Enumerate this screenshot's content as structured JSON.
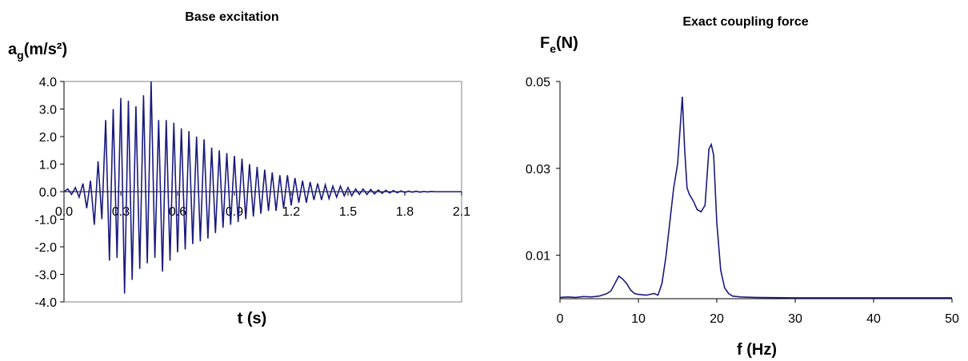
{
  "chart_data": [
    {
      "type": "line",
      "title": "Base excitation",
      "ylabel": "a",
      "ylabel_sub": "g",
      "ylabel_unit": "(m/s²)",
      "xlabel": "t (s)",
      "xlim": [
        0,
        2.1
      ],
      "ylim": [
        -4.0,
        4.0
      ],
      "x_ticks": [
        "0.0",
        "0.3",
        "0.6",
        "0.9",
        "1.2",
        "1.5",
        "1.8",
        "2.1"
      ],
      "x_tick_values": [
        0,
        0.3,
        0.6,
        0.9,
        1.2,
        1.5,
        1.8,
        2.1
      ],
      "y_ticks": [
        "4.0",
        "3.0",
        "2.0",
        "1.0",
        "0.0",
        "-1.0",
        "-2.0",
        "-3.0",
        "-4.0"
      ],
      "y_tick_values": [
        4,
        3,
        2,
        1,
        0,
        -1,
        -2,
        -3,
        -4
      ],
      "grid": false,
      "color": "#1a1a80",
      "series": [
        {
          "x": [
            0.0,
            0.02,
            0.04,
            0.06,
            0.08,
            0.1,
            0.12,
            0.14,
            0.16,
            0.18,
            0.2,
            0.22,
            0.24,
            0.26,
            0.28,
            0.3,
            0.32,
            0.34,
            0.36,
            0.38,
            0.4,
            0.42,
            0.44,
            0.46,
            0.48,
            0.5,
            0.52,
            0.54,
            0.56,
            0.58,
            0.6,
            0.62,
            0.64,
            0.66,
            0.68,
            0.7,
            0.72,
            0.74,
            0.76,
            0.78,
            0.8,
            0.82,
            0.84,
            0.86,
            0.88,
            0.9,
            0.92,
            0.94,
            0.96,
            0.98,
            1.0,
            1.02,
            1.04,
            1.06,
            1.08,
            1.1,
            1.12,
            1.14,
            1.16,
            1.18,
            1.2,
            1.22,
            1.24,
            1.26,
            1.28,
            1.3,
            1.32,
            1.34,
            1.36,
            1.38,
            1.4,
            1.42,
            1.44,
            1.46,
            1.48,
            1.5,
            1.52,
            1.54,
            1.56,
            1.58,
            1.6,
            1.62,
            1.64,
            1.66,
            1.68,
            1.7,
            1.72,
            1.74,
            1.76,
            1.78,
            1.8,
            1.82,
            1.84,
            1.86,
            1.88,
            1.9,
            1.92,
            1.94,
            1.96,
            1.98,
            2.0,
            2.05,
            2.1
          ],
          "y": [
            0.0,
            0.1,
            -0.1,
            0.15,
            -0.2,
            0.3,
            -0.6,
            0.4,
            -1.2,
            1.1,
            -1.0,
            2.6,
            -2.5,
            3.0,
            -2.4,
            3.4,
            -3.7,
            3.3,
            -3.2,
            3.1,
            -2.8,
            3.5,
            -2.6,
            4.0,
            -2.4,
            2.6,
            -2.9,
            2.6,
            -2.5,
            2.5,
            -2.2,
            2.3,
            -2.1,
            2.2,
            -1.9,
            2.0,
            -1.8,
            1.9,
            -1.7,
            1.6,
            -1.5,
            1.5,
            -1.3,
            1.4,
            -1.2,
            1.3,
            -1.1,
            1.2,
            -1.0,
            1.0,
            -0.9,
            0.9,
            -0.8,
            0.8,
            -0.7,
            0.7,
            -0.7,
            0.6,
            -0.6,
            0.6,
            -0.5,
            0.5,
            -0.4,
            0.4,
            -0.4,
            0.35,
            -0.3,
            0.3,
            -0.3,
            0.25,
            -0.25,
            0.2,
            -0.2,
            0.2,
            -0.15,
            0.15,
            -0.15,
            0.1,
            -0.1,
            0.1,
            -0.1,
            0.08,
            -0.08,
            0.06,
            -0.06,
            0.05,
            -0.05,
            0.04,
            -0.04,
            0.03,
            -0.03,
            0.02,
            -0.02,
            0.02,
            -0.02,
            0.01,
            -0.01,
            0.01,
            0.0,
            0.0,
            0.0,
            0.0,
            0.0
          ]
        }
      ]
    },
    {
      "type": "line",
      "title": "Exact coupling force",
      "ylabel": "F",
      "ylabel_sub": "e",
      "ylabel_unit": "(N)",
      "xlabel": "f (Hz)",
      "xlim": [
        0,
        50
      ],
      "ylim": [
        0,
        0.05
      ],
      "x_ticks": [
        "0",
        "10",
        "20",
        "30",
        "40",
        "50"
      ],
      "x_tick_values": [
        0,
        10,
        20,
        30,
        40,
        50
      ],
      "y_ticks": [
        "0.05",
        "0.03",
        "0.01"
      ],
      "y_tick_values": [
        0.05,
        0.03,
        0.01
      ],
      "grid": false,
      "color": "#1a1a80",
      "series": [
        {
          "x": [
            0,
            1,
            2,
            3,
            4,
            5,
            6,
            6.5,
            7,
            7.5,
            8,
            8.5,
            9,
            9.5,
            10,
            11,
            12,
            12.5,
            13,
            13.5,
            14,
            14.5,
            15,
            15.3,
            15.6,
            15.9,
            16.2,
            16.5,
            17,
            17.5,
            18,
            18.5,
            19,
            19.3,
            19.6,
            20,
            20.5,
            21,
            21.5,
            22,
            23,
            25,
            30,
            35,
            40,
            45,
            50
          ],
          "y": [
            0.0003,
            0.0004,
            0.0003,
            0.0005,
            0.0004,
            0.0006,
            0.0012,
            0.0018,
            0.0035,
            0.0052,
            0.0045,
            0.0035,
            0.002,
            0.0012,
            0.001,
            0.0008,
            0.0012,
            0.0008,
            0.0035,
            0.0095,
            0.0175,
            0.0255,
            0.031,
            0.0385,
            0.0465,
            0.0345,
            0.0255,
            0.024,
            0.0225,
            0.0205,
            0.02,
            0.0215,
            0.0345,
            0.0355,
            0.033,
            0.0175,
            0.0065,
            0.0025,
            0.0012,
            0.0006,
            0.0004,
            0.0003,
            0.0002,
            0.0002,
            0.0002,
            0.0002,
            0.0002
          ]
        }
      ]
    }
  ]
}
